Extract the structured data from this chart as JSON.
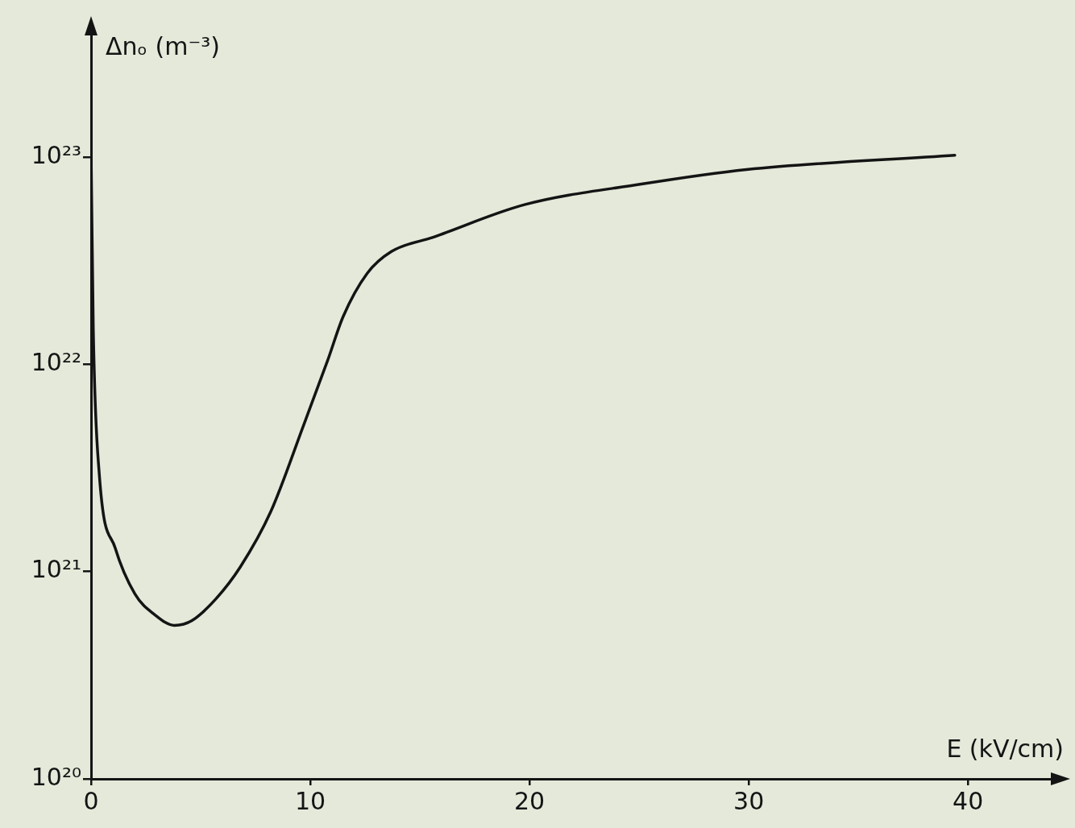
{
  "chart_data": {
    "type": "line",
    "xlabel": "E (kV/cm)",
    "ylabel": "Δnₒ (m⁻³)",
    "log": "y",
    "marker": "none",
    "line_style": "solid",
    "xlim": [
      0,
      44
    ],
    "xticks": [
      0,
      10,
      20,
      30,
      40
    ],
    "ylim": [
      1e+20,
      4e+23
    ],
    "yticks": [
      {
        "value": 1e+20,
        "label": "10²⁰"
      },
      {
        "value": 1e+21,
        "label": "10²¹"
      },
      {
        "value": 1e+22,
        "label": "10²²"
      },
      {
        "value": 1e+23,
        "label": "10²³"
      }
    ],
    "series": [
      {
        "color": "#141414",
        "x": [
          0,
          0.1,
          0.37,
          1.1,
          2.0,
          2.9,
          3.8,
          4.6,
          5.7,
          6.8,
          8.2,
          9.7,
          10.8,
          11.5,
          12.6,
          13.7,
          15.6,
          19.8,
          25.1,
          29.9,
          39.4
        ],
        "values": [
          1.1e+23,
          1.5e+22,
          3e+21,
          1.3e+21,
          7.8e+20,
          6.2e+20,
          5.5e+20,
          5.8e+20,
          7.4e+20,
          1.05e+21,
          1.95e+21,
          5.1e+21,
          1.05e+22,
          1.7e+22,
          2.75e+22,
          3.5e+22,
          4.1e+22,
          5.9e+22,
          7.4e+22,
          8.7e+22,
          1.02e+23
        ]
      }
    ]
  }
}
